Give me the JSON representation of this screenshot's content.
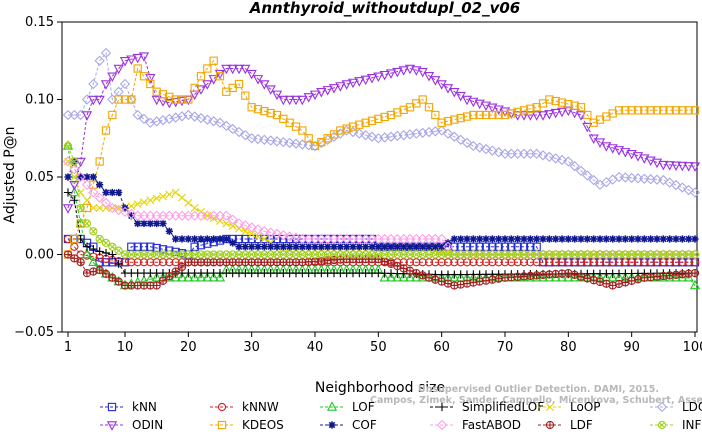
{
  "chart_data": {
    "type": "line",
    "title": "Annthyroid_withoutdupl_02_v06",
    "xlabel": "Neighborhood size",
    "ylabel": "Adjusted P@n",
    "xlim": [
      1,
      100
    ],
    "ylim": [
      -0.05,
      0.15
    ],
    "xticks": [
      1,
      10,
      20,
      30,
      40,
      50,
      60,
      70,
      80,
      90,
      100
    ],
    "yticks": [
      -0.05,
      0.0,
      0.05,
      0.1,
      0.15
    ],
    "ytick_labels": [
      "−0.05",
      "0.00",
      "0.05",
      "0.10",
      "0.15"
    ],
    "grid": false,
    "legend_position": "bottom",
    "series": [
      {
        "name": "kNN",
        "color": "#1f2bd6",
        "marker": "square",
        "points": [
          [
            1,
            0.01
          ],
          [
            3,
            0.01
          ],
          [
            5,
            0.005
          ],
          [
            6,
            -0.005
          ],
          [
            10,
            -0.005
          ],
          [
            11,
            0.005
          ],
          [
            14,
            0.005
          ],
          [
            20,
            0.0
          ],
          [
            21,
            0.005
          ],
          [
            26,
            0.01
          ],
          [
            49,
            0.01
          ],
          [
            50,
            0.005
          ],
          [
            75,
            0.005
          ],
          [
            76,
            -0.005
          ],
          [
            100,
            -0.005
          ]
        ]
      },
      {
        "name": "kNNW",
        "color": "#d42020",
        "marker": "circle",
        "points": [
          [
            1,
            0.01
          ],
          [
            2,
            0.005
          ],
          [
            3,
            0.0
          ],
          [
            10,
            -0.005
          ],
          [
            100,
            -0.005
          ]
        ]
      },
      {
        "name": "LOF",
        "color": "#22c922",
        "marker": "triangle-up",
        "points": [
          [
            1,
            0.07
          ],
          [
            2,
            0.04
          ],
          [
            3,
            0.02
          ],
          [
            4,
            0.0
          ],
          [
            6,
            -0.01
          ],
          [
            10,
            -0.02
          ],
          [
            15,
            -0.015
          ],
          [
            25,
            -0.015
          ],
          [
            26,
            -0.01
          ],
          [
            50,
            -0.01
          ],
          [
            51,
            -0.015
          ],
          [
            99,
            -0.015
          ],
          [
            100,
            -0.02
          ]
        ]
      },
      {
        "name": "SimplifiedLOF",
        "color": "#000000",
        "marker": "plus",
        "points": [
          [
            1,
            0.04
          ],
          [
            2,
            0.035
          ],
          [
            3,
            0.01
          ],
          [
            4,
            0.005
          ],
          [
            6,
            0.002
          ],
          [
            8,
            0.0
          ],
          [
            10,
            -0.012
          ],
          [
            50,
            -0.012
          ],
          [
            60,
            -0.013
          ],
          [
            100,
            -0.012
          ]
        ]
      },
      {
        "name": "LoOP",
        "color": "#e6d400",
        "marker": "x",
        "points": [
          [
            1,
            0.06
          ],
          [
            3,
            0.04
          ],
          [
            5,
            0.03
          ],
          [
            10,
            0.03
          ],
          [
            14,
            0.035
          ],
          [
            18,
            0.04
          ],
          [
            21,
            0.03
          ],
          [
            23,
            0.025
          ],
          [
            26,
            0.02
          ],
          [
            32,
            0.01
          ],
          [
            34,
            0.005
          ],
          [
            37,
            0.003
          ],
          [
            45,
            0.003
          ],
          [
            50,
            0.003
          ],
          [
            58,
            0.003
          ],
          [
            62,
            0.0
          ],
          [
            100,
            0.0
          ]
        ]
      },
      {
        "name": "LDOF",
        "color": "#a8a8e8",
        "marker": "diamond",
        "points": [
          [
            1,
            0.09
          ],
          [
            3,
            0.09
          ],
          [
            5,
            0.11
          ],
          [
            6,
            0.125
          ],
          [
            7,
            0.13
          ],
          [
            8,
            0.1
          ],
          [
            10,
            0.11
          ],
          [
            12,
            0.09
          ],
          [
            14,
            0.085
          ],
          [
            20,
            0.09
          ],
          [
            25,
            0.085
          ],
          [
            30,
            0.075
          ],
          [
            40,
            0.07
          ],
          [
            45,
            0.08
          ],
          [
            50,
            0.075
          ],
          [
            60,
            0.08
          ],
          [
            65,
            0.07
          ],
          [
            70,
            0.065
          ],
          [
            75,
            0.065
          ],
          [
            80,
            0.06
          ],
          [
            85,
            0.045
          ],
          [
            88,
            0.05
          ],
          [
            95,
            0.048
          ],
          [
            100,
            0.04
          ]
        ]
      },
      {
        "name": "ODIN",
        "color": "#9b30e0",
        "marker": "triangle-down",
        "points": [
          [
            1,
            0.03
          ],
          [
            3,
            0.06
          ],
          [
            4,
            0.09
          ],
          [
            5,
            0.1
          ],
          [
            6,
            0.1
          ],
          [
            7,
            0.11
          ],
          [
            9,
            0.12
          ],
          [
            10,
            0.125
          ],
          [
            13,
            0.128
          ],
          [
            15,
            0.1
          ],
          [
            17,
            0.098
          ],
          [
            20,
            0.1
          ],
          [
            23,
            0.11
          ],
          [
            26,
            0.12
          ],
          [
            29,
            0.12
          ],
          [
            32,
            0.11
          ],
          [
            35,
            0.1
          ],
          [
            38,
            0.1
          ],
          [
            41,
            0.105
          ],
          [
            45,
            0.11
          ],
          [
            50,
            0.115
          ],
          [
            55,
            0.12
          ],
          [
            57,
            0.118
          ],
          [
            60,
            0.11
          ],
          [
            64,
            0.1
          ],
          [
            68,
            0.095
          ],
          [
            72,
            0.09
          ],
          [
            76,
            0.09
          ],
          [
            80,
            0.093
          ],
          [
            82,
            0.09
          ],
          [
            84,
            0.075
          ],
          [
            86,
            0.07
          ],
          [
            90,
            0.065
          ],
          [
            95,
            0.058
          ],
          [
            100,
            0.057
          ]
        ]
      },
      {
        "name": "KDEOS",
        "color": "#f2a600",
        "marker": "square",
        "points": [
          [
            1,
            0.0
          ],
          [
            4,
            0.03
          ],
          [
            6,
            0.06
          ],
          [
            7,
            0.08
          ],
          [
            8,
            0.09
          ],
          [
            9,
            0.1
          ],
          [
            11,
            0.1
          ],
          [
            12,
            0.12
          ],
          [
            13,
            0.115
          ],
          [
            15,
            0.105
          ],
          [
            18,
            0.1
          ],
          [
            20,
            0.1
          ],
          [
            22,
            0.115
          ],
          [
            24,
            0.125
          ],
          [
            26,
            0.105
          ],
          [
            28,
            0.11
          ],
          [
            30,
            0.095
          ],
          [
            34,
            0.09
          ],
          [
            38,
            0.08
          ],
          [
            40,
            0.07
          ],
          [
            44,
            0.08
          ],
          [
            48,
            0.085
          ],
          [
            52,
            0.09
          ],
          [
            55,
            0.095
          ],
          [
            57,
            0.1
          ],
          [
            60,
            0.085
          ],
          [
            65,
            0.09
          ],
          [
            70,
            0.09
          ],
          [
            75,
            0.095
          ],
          [
            77,
            0.1
          ],
          [
            82,
            0.095
          ],
          [
            84,
            0.085
          ],
          [
            88,
            0.093
          ],
          [
            100,
            0.093
          ]
        ]
      },
      {
        "name": "COF",
        "color": "#101890",
        "marker": "asterisk",
        "points": [
          [
            1,
            0.05
          ],
          [
            2,
            0.06
          ],
          [
            3,
            0.05
          ],
          [
            5,
            0.05
          ],
          [
            7,
            0.04
          ],
          [
            9,
            0.04
          ],
          [
            10,
            0.03
          ],
          [
            12,
            0.02
          ],
          [
            16,
            0.02
          ],
          [
            18,
            0.01
          ],
          [
            26,
            0.01
          ],
          [
            28,
            0.005
          ],
          [
            60,
            0.005
          ],
          [
            62,
            0.01
          ],
          [
            100,
            0.01
          ]
        ]
      },
      {
        "name": "FastABOD",
        "color": "#ff9ee8",
        "marker": "diamond",
        "points": [
          [
            1,
            0.06
          ],
          [
            3,
            0.05
          ],
          [
            5,
            0.04
          ],
          [
            8,
            0.03
          ],
          [
            12,
            0.025
          ],
          [
            20,
            0.025
          ],
          [
            26,
            0.025
          ],
          [
            28,
            0.02
          ],
          [
            32,
            0.015
          ],
          [
            38,
            0.01
          ],
          [
            45,
            0.01
          ],
          [
            52,
            0.01
          ],
          [
            60,
            0.01
          ],
          [
            62,
            0.0
          ],
          [
            100,
            0.0
          ]
        ]
      },
      {
        "name": "LDF",
        "color": "#a02020",
        "marker": "circle-plus",
        "points": [
          [
            1,
            0.0
          ],
          [
            3,
            -0.005
          ],
          [
            4,
            -0.012
          ],
          [
            6,
            -0.01
          ],
          [
            10,
            -0.02
          ],
          [
            15,
            -0.02
          ],
          [
            20,
            -0.005
          ],
          [
            30,
            -0.005
          ],
          [
            38,
            -0.005
          ],
          [
            45,
            -0.003
          ],
          [
            50,
            -0.003
          ],
          [
            58,
            -0.015
          ],
          [
            62,
            -0.02
          ],
          [
            70,
            -0.015
          ],
          [
            80,
            -0.012
          ],
          [
            87,
            -0.02
          ],
          [
            92,
            -0.015
          ],
          [
            100,
            -0.012
          ]
        ]
      },
      {
        "name": "INFLO",
        "color": "#a0d020",
        "marker": "circle-x",
        "points": [
          [
            1,
            0.07
          ],
          [
            2,
            0.06
          ],
          [
            3,
            0.03
          ],
          [
            4,
            0.02
          ],
          [
            6,
            0.01
          ],
          [
            8,
            0.005
          ],
          [
            10,
            0.0
          ],
          [
            40,
            0.0
          ],
          [
            50,
            0.0
          ],
          [
            100,
            0.0
          ]
        ]
      }
    ]
  },
  "watermark": {
    "line1": "Unsupervised Outlier Detection. DAMI, 2015.",
    "line2": "Campos, Zimek, Sander, Campello, Micenkova, Schubert, Assent, Houle"
  }
}
